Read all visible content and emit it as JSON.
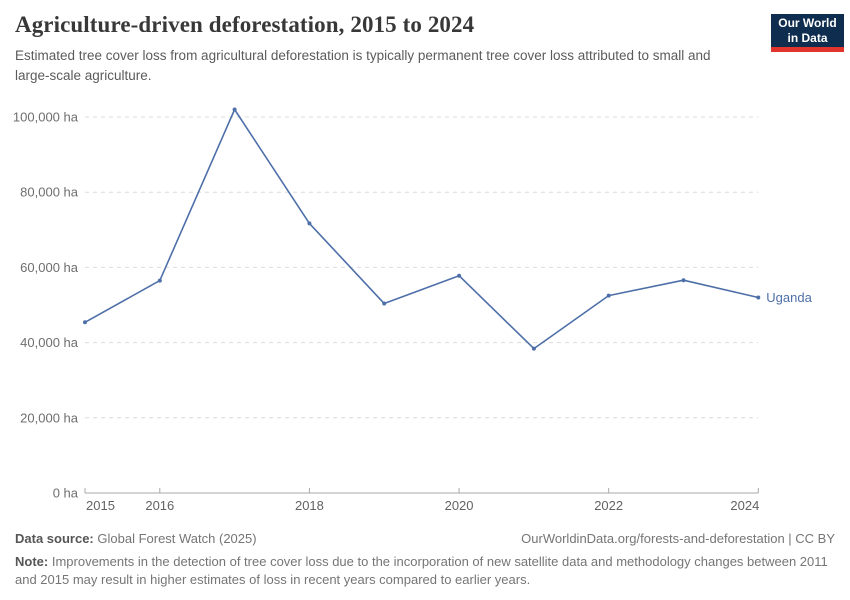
{
  "header": {
    "title": "Agriculture-driven deforestation, 2015 to 2024",
    "subtitle": "Estimated tree cover loss from agricultural deforestation is typically permanent tree cover loss attributed to small and large-scale agriculture."
  },
  "logo": {
    "line1": "Our World",
    "line2": "in Data",
    "bg_color": "#0f2d4e",
    "bar_color": "#e0342c"
  },
  "chart_data": {
    "type": "line",
    "title": "Agriculture-driven deforestation, 2015 to 2024",
    "entity_label": "Uganda",
    "x": [
      2015,
      2016,
      2017,
      2018,
      2019,
      2020,
      2021,
      2022,
      2023,
      2024
    ],
    "series": [
      {
        "name": "Uganda",
        "values": [
          45400,
          56500,
          102000,
          71700,
          50400,
          57800,
          38400,
          52500,
          56600,
          52000
        ]
      }
    ],
    "unit": "ha",
    "ylim": [
      0,
      105000
    ],
    "grid": true,
    "legend_position": "end-of-line",
    "line_color": "#4e6fa8",
    "y_ticks": [
      {
        "value": 0,
        "label": "0 ha"
      },
      {
        "value": 20000,
        "label": "20,000 ha"
      },
      {
        "value": 40000,
        "label": "40,000 ha"
      },
      {
        "value": 60000,
        "label": "60,000 ha"
      },
      {
        "value": 80000,
        "label": "80,000 ha"
      },
      {
        "value": 100000,
        "label": "100,000 ha"
      }
    ],
    "x_tick_labels": [
      "2015",
      "2016",
      "2018",
      "2020",
      "2022",
      "2024"
    ],
    "x_tick_years": [
      2015,
      2016,
      2018,
      2020,
      2022,
      2024
    ],
    "grid_color": "#dcdcdc",
    "axis_color": "#a8a8a8",
    "tick_label_color": "#6e6e6e"
  },
  "footer": {
    "data_source_label": "Data source:",
    "data_source_value": "Global Forest Watch (2025)",
    "link": "OurWorldinData.org/forests-and-deforestation | CC BY",
    "note_label": "Note:",
    "note_value": "Improvements in the detection of tree cover loss due to the incorporation of new satellite data and methodology changes between 2011 and 2015 may result in higher estimates of loss in recent years compared to earlier years."
  }
}
